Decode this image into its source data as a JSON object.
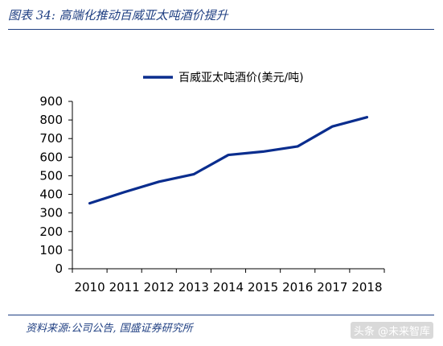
{
  "caption": "图表 34:  高端化推动百威亚太吨酒价提升",
  "source": "资料来源:公司公告, 国盛证券研究所",
  "watermark": "头条 @未来智库",
  "colors": {
    "series": "#0a2d8e",
    "caption": "#1f3f82"
  },
  "chart_data": {
    "type": "line",
    "x": [
      "2010",
      "2011",
      "2012",
      "2013",
      "2014",
      "2015",
      "2016",
      "2017",
      "2018"
    ],
    "series": [
      {
        "name": "百威亚太吨酒价(美元/吨)",
        "values": [
          352,
          412,
          468,
          508,
          612,
          630,
          658,
          765,
          815
        ]
      }
    ],
    "ylim": [
      0,
      900
    ],
    "yticks": [
      0,
      100,
      200,
      300,
      400,
      500,
      600,
      700,
      800,
      900
    ],
    "legend": "top-center",
    "grid": false
  }
}
